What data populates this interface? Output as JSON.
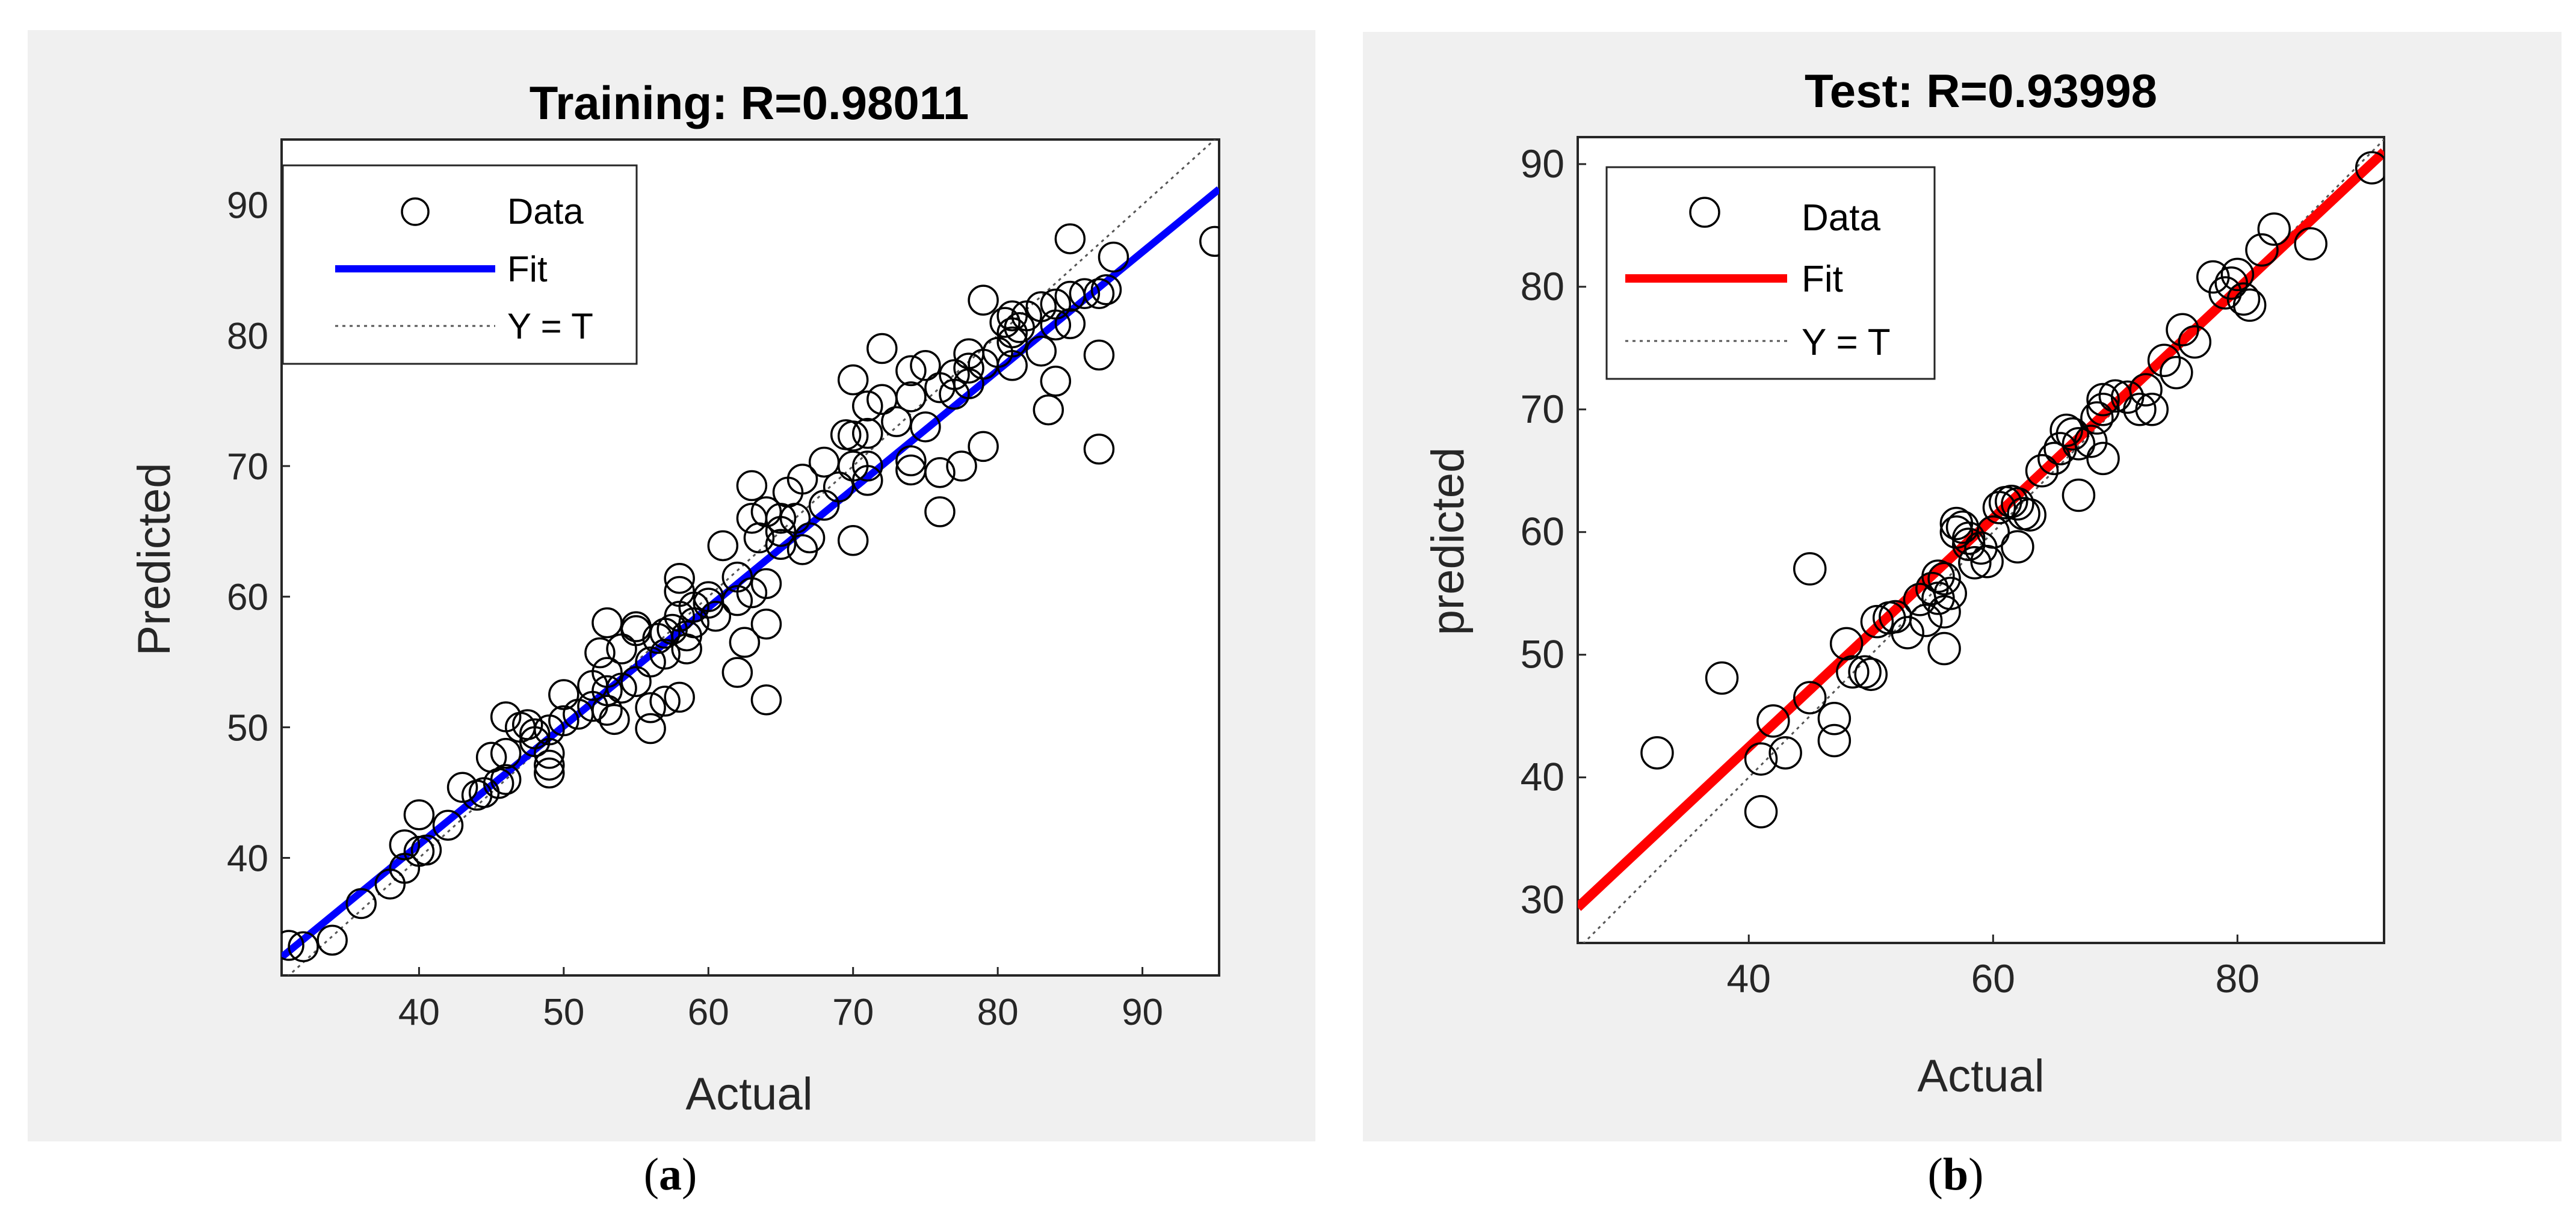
{
  "colors": {
    "panel_bg": "#f0f0f0",
    "axes_bg": "#ffffff",
    "fit_a": "#0000ff",
    "fit_b": "#ff0000",
    "marker": "#000000"
  },
  "captions": {
    "a_open": "(",
    "a_letter": "a",
    "a_close": ")",
    "b_open": "(",
    "b_letter": "b",
    "b_close": ")"
  },
  "chart_data": [
    {
      "type": "scatter",
      "title": "Training: R=0.98011",
      "xlabel": "Actual",
      "ylabel": "Predicted",
      "xlim": [
        30.5,
        95.3
      ],
      "ylim": [
        31,
        95
      ],
      "xticks": [
        40,
        50,
        60,
        70,
        80,
        90
      ],
      "yticks": [
        40,
        50,
        60,
        70,
        80,
        90
      ],
      "legend": {
        "position": "top-left",
        "entries": [
          "Data",
          "Fit",
          "Y = T"
        ]
      },
      "fit": {
        "x": [
          30.5,
          95.3
        ],
        "y": [
          32.4,
          91.2
        ]
      },
      "identity": {
        "x": [
          30.5,
          95.3
        ],
        "y": [
          30.5,
          95.3
        ]
      },
      "points": [
        [
          31,
          33.3
        ],
        [
          32,
          33.2
        ],
        [
          34,
          33.7
        ],
        [
          36,
          36.5
        ],
        [
          38,
          38
        ],
        [
          39,
          39.2
        ],
        [
          39,
          41
        ],
        [
          40,
          40.5
        ],
        [
          40,
          43.3
        ],
        [
          40.5,
          40.6
        ],
        [
          42,
          42.5
        ],
        [
          43,
          45.4
        ],
        [
          44,
          44.8
        ],
        [
          44.5,
          45
        ],
        [
          45,
          47.7
        ],
        [
          45.5,
          45.7
        ],
        [
          46,
          46
        ],
        [
          46,
          50.8
        ],
        [
          46,
          48
        ],
        [
          47,
          50
        ],
        [
          47.5,
          50.2
        ],
        [
          48,
          48.9
        ],
        [
          48,
          49.5
        ],
        [
          49,
          47.1
        ],
        [
          49,
          48
        ],
        [
          49,
          49.8
        ],
        [
          49,
          46.5
        ],
        [
          50,
          50.5
        ],
        [
          50,
          52.5
        ],
        [
          51,
          51
        ],
        [
          52,
          51.6
        ],
        [
          52,
          53.2
        ],
        [
          52.5,
          55.7
        ],
        [
          53,
          58
        ],
        [
          53,
          52.8
        ],
        [
          53,
          54.2
        ],
        [
          53,
          51.3
        ],
        [
          53.5,
          50.6
        ],
        [
          54,
          53
        ],
        [
          54,
          56
        ],
        [
          55,
          53.5
        ],
        [
          55,
          57.4
        ],
        [
          55,
          57.7
        ],
        [
          56,
          49.9
        ],
        [
          56,
          51.5
        ],
        [
          56,
          55
        ],
        [
          56.5,
          56.8
        ],
        [
          57,
          52
        ],
        [
          57,
          55.6
        ],
        [
          57,
          57.2
        ],
        [
          57.5,
          57.5
        ],
        [
          58,
          61.4
        ],
        [
          58,
          60.4
        ],
        [
          58,
          58.5
        ],
        [
          58,
          52.3
        ],
        [
          58.5,
          57
        ],
        [
          58.5,
          56
        ],
        [
          59,
          58
        ],
        [
          59,
          59.2
        ],
        [
          60,
          60
        ],
        [
          60,
          59.5
        ],
        [
          60.5,
          58.5
        ],
        [
          61,
          63.9
        ],
        [
          62,
          61.5
        ],
        [
          62,
          59.7
        ],
        [
          62,
          54.2
        ],
        [
          62.5,
          56.5
        ],
        [
          63,
          60.3
        ],
        [
          63,
          68.5
        ],
        [
          63,
          66
        ],
        [
          63.5,
          64.5
        ],
        [
          64,
          52.1
        ],
        [
          64,
          57.9
        ],
        [
          64,
          61
        ],
        [
          64,
          66.5
        ],
        [
          65,
          65
        ],
        [
          65,
          66
        ],
        [
          65,
          64
        ],
        [
          65.5,
          68
        ],
        [
          66,
          66
        ],
        [
          66.5,
          69
        ],
        [
          66.5,
          63.6
        ],
        [
          67,
          64.5
        ],
        [
          68,
          67
        ],
        [
          68,
          70.3
        ],
        [
          69,
          68.4
        ],
        [
          69.5,
          72.4
        ],
        [
          70,
          70
        ],
        [
          70,
          76.6
        ],
        [
          70,
          72.3
        ],
        [
          70,
          64.3
        ],
        [
          71,
          74.6
        ],
        [
          71,
          72.5
        ],
        [
          71,
          70
        ],
        [
          71,
          68.9
        ],
        [
          72,
          75.1
        ],
        [
          72,
          79
        ],
        [
          73,
          73.4
        ],
        [
          74,
          75.3
        ],
        [
          74,
          77.3
        ],
        [
          74,
          69.7
        ],
        [
          74,
          70.4
        ],
        [
          75,
          77.7
        ],
        [
          75,
          73
        ],
        [
          76,
          76
        ],
        [
          76,
          69.5
        ],
        [
          76,
          66.5
        ],
        [
          77,
          77
        ],
        [
          77,
          75.5
        ],
        [
          77.5,
          70
        ],
        [
          78,
          77.5
        ],
        [
          78,
          78.6
        ],
        [
          78,
          76.3
        ],
        [
          79,
          77.8
        ],
        [
          79,
          82.7
        ],
        [
          79,
          71.5
        ],
        [
          80,
          78.7
        ],
        [
          80.5,
          81
        ],
        [
          81,
          80.2
        ],
        [
          81,
          81.5
        ],
        [
          81,
          79.5
        ],
        [
          81,
          77.7
        ],
        [
          81.5,
          80.6
        ],
        [
          82,
          81.5
        ],
        [
          83,
          78.8
        ],
        [
          83,
          82.2
        ],
        [
          83.5,
          74.3
        ],
        [
          84,
          76.5
        ],
        [
          84,
          82.4
        ],
        [
          84,
          80.8
        ],
        [
          85,
          80.9
        ],
        [
          85,
          83
        ],
        [
          85,
          87.4
        ],
        [
          86,
          83.2
        ],
        [
          87,
          71.3
        ],
        [
          87,
          78.5
        ],
        [
          87,
          83.2
        ],
        [
          87.5,
          83.5
        ],
        [
          88,
          86
        ],
        [
          95,
          87.2
        ]
      ]
    },
    {
      "type": "scatter",
      "title": "Test: R=0.93998",
      "xlabel": "Actual",
      "ylabel": "predicted",
      "xlim": [
        26,
        92
      ],
      "ylim": [
        26.5,
        92.2
      ],
      "xticks": [
        40,
        60,
        80
      ],
      "yticks": [
        30,
        40,
        50,
        60,
        70,
        80,
        90
      ],
      "legend": {
        "position": "top-left",
        "entries": [
          "Data",
          "Fit",
          "Y = T"
        ]
      },
      "fit": {
        "x": [
          26,
          92
        ],
        "y": [
          29.4,
          91
        ]
      },
      "identity": {
        "x": [
          26,
          92
        ],
        "y": [
          26,
          92
        ]
      },
      "points": [
        [
          32.5,
          42
        ],
        [
          37.8,
          48.1
        ],
        [
          41,
          37.2
        ],
        [
          41,
          41.5
        ],
        [
          42,
          44.6
        ],
        [
          43,
          42
        ],
        [
          45,
          57
        ],
        [
          45,
          46.5
        ],
        [
          47,
          43
        ],
        [
          47,
          44.8
        ],
        [
          48,
          50.9
        ],
        [
          48.5,
          48.6
        ],
        [
          49.5,
          48.6
        ],
        [
          50,
          48.4
        ],
        [
          50.5,
          52.7
        ],
        [
          51.5,
          53
        ],
        [
          52,
          53.1
        ],
        [
          53,
          51.8
        ],
        [
          54,
          54.5
        ],
        [
          54.5,
          52.8
        ],
        [
          55,
          55.4
        ],
        [
          55.5,
          56.4
        ],
        [
          55.5,
          54.6
        ],
        [
          56,
          50.5
        ],
        [
          56,
          53.5
        ],
        [
          56,
          56.2
        ],
        [
          56.5,
          55
        ],
        [
          57,
          60.7
        ],
        [
          57,
          60
        ],
        [
          57.5,
          60.4
        ],
        [
          58,
          59.5
        ],
        [
          58,
          59
        ],
        [
          58.5,
          57.5
        ],
        [
          59,
          58.7
        ],
        [
          59.5,
          57.6
        ],
        [
          60,
          60
        ],
        [
          60.5,
          62
        ],
        [
          61,
          62.4
        ],
        [
          61.5,
          62.5
        ],
        [
          62,
          62.3
        ],
        [
          62,
          58.8
        ],
        [
          62.5,
          61.5
        ],
        [
          63,
          61.4
        ],
        [
          64,
          65
        ],
        [
          65,
          66
        ],
        [
          65.5,
          66.8
        ],
        [
          66,
          68.3
        ],
        [
          66.5,
          68
        ],
        [
          67,
          67.2
        ],
        [
          67,
          63
        ],
        [
          68,
          67.4
        ],
        [
          68.5,
          69.3
        ],
        [
          69,
          70
        ],
        [
          69,
          70.8
        ],
        [
          69,
          66
        ],
        [
          70,
          71.1
        ],
        [
          71,
          71
        ],
        [
          72,
          70
        ],
        [
          72.5,
          71.6
        ],
        [
          73,
          70
        ],
        [
          74,
          74
        ],
        [
          75,
          73
        ],
        [
          75.5,
          76.5
        ],
        [
          76.5,
          75.5
        ],
        [
          78,
          80.8
        ],
        [
          79,
          79.5
        ],
        [
          79.5,
          80.3
        ],
        [
          80,
          81
        ],
        [
          80.5,
          79
        ],
        [
          81,
          78.5
        ],
        [
          82,
          83
        ],
        [
          83,
          84.7
        ],
        [
          86,
          83.5
        ],
        [
          91,
          89.7
        ]
      ]
    }
  ]
}
